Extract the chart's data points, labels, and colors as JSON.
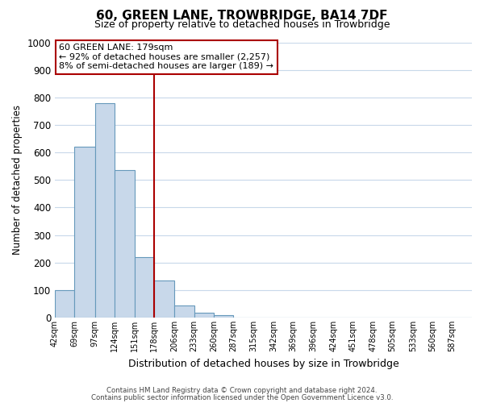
{
  "title": "60, GREEN LANE, TROWBRIDGE, BA14 7DF",
  "subtitle": "Size of property relative to detached houses in Trowbridge",
  "xlabel": "Distribution of detached houses by size in Trowbridge",
  "ylabel": "Number of detached properties",
  "bar_color": "#c8d8ea",
  "bar_edge_color": "#6699bb",
  "background_color": "#ffffff",
  "grid_color": "#c8d8ea",
  "annotation_line_color": "#aa0000",
  "annotation_box_line1": "60 GREEN LANE: 179sqm",
  "annotation_box_line2": "← 92% of detached houses are smaller (2,257)",
  "annotation_box_line3": "8% of semi-detached houses are larger (189) →",
  "categories": [
    "42sqm",
    "69sqm",
    "97sqm",
    "124sqm",
    "151sqm",
    "178sqm",
    "206sqm",
    "233sqm",
    "260sqm",
    "287sqm",
    "315sqm",
    "342sqm",
    "369sqm",
    "396sqm",
    "424sqm",
    "451sqm",
    "478sqm",
    "505sqm",
    "533sqm",
    "560sqm",
    "587sqm"
  ],
  "bin_left": [
    42,
    69,
    97,
    124,
    151,
    178,
    206,
    233,
    260,
    287,
    315,
    342,
    369,
    396,
    424,
    451,
    478,
    505,
    533,
    560,
    587
  ],
  "bin_right": [
    69,
    97,
    124,
    151,
    178,
    206,
    233,
    260,
    287,
    315,
    342,
    369,
    396,
    424,
    451,
    478,
    505,
    533,
    560,
    587,
    614
  ],
  "values": [
    100,
    620,
    780,
    535,
    220,
    135,
    45,
    18,
    10,
    0,
    0,
    0,
    0,
    0,
    0,
    0,
    0,
    0,
    0,
    0,
    0
  ],
  "property_line_x": 178,
  "xlim": [
    42,
    614
  ],
  "ylim": [
    0,
    1000
  ],
  "yticks": [
    0,
    100,
    200,
    300,
    400,
    500,
    600,
    700,
    800,
    900,
    1000
  ],
  "footer_line1": "Contains HM Land Registry data © Crown copyright and database right 2024.",
  "footer_line2": "Contains public sector information licensed under the Open Government Licence v3.0."
}
